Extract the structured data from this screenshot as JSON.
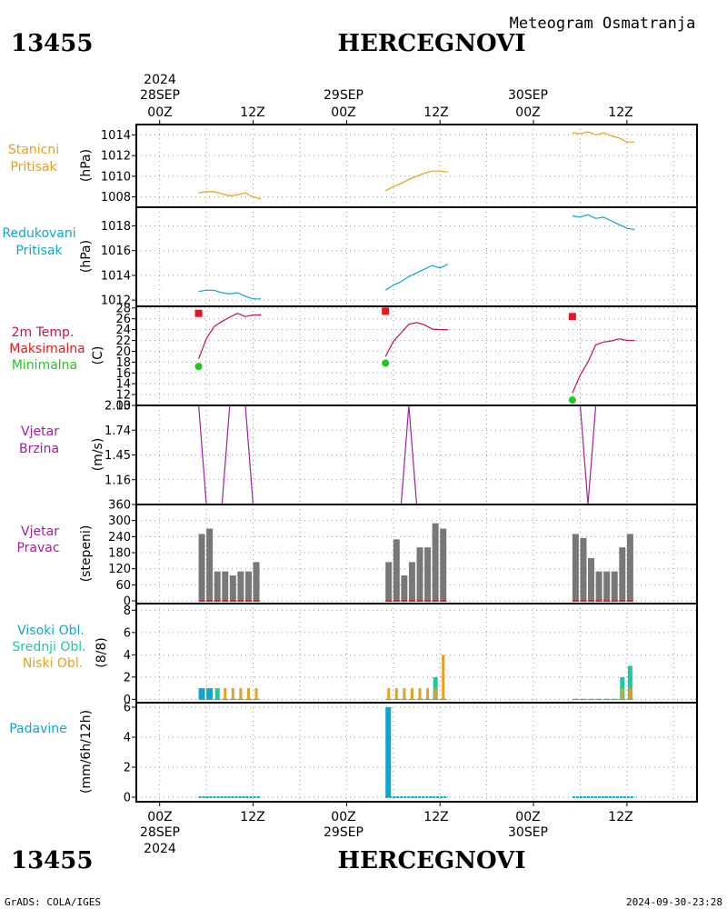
{
  "header": {
    "station_id": "13455",
    "station_name": "HERCEGNOVI",
    "product": "Meteogram Osmatranja"
  },
  "footer": {
    "station_id": "13455",
    "station_name": "HERCEGNOVI",
    "credit": "GrADS: COLA/IGES",
    "timestamp": "2024-09-30-23:28"
  },
  "time_axis": {
    "year": "2024",
    "days": [
      "28SEP",
      "29SEP",
      "30SEP"
    ],
    "hour_labels": [
      "00Z",
      "12Z",
      "00Z",
      "12Z",
      "00Z",
      "12Z"
    ],
    "range_hours": [
      -3,
      69
    ],
    "label_hours": [
      0,
      12,
      24,
      36,
      48,
      60
    ],
    "grid_hours": [
      0,
      6,
      12,
      18,
      24,
      30,
      36,
      42,
      48,
      54,
      60,
      66
    ]
  },
  "colors": {
    "station_pressure": "#e6a01e",
    "reduced_pressure": "#0ea6d0",
    "tmax_line": "#c8104e",
    "tmax_marker": "#e8161e",
    "tmin_marker": "#1ec81e",
    "wind_speed": "#a020a0",
    "wind_dir_bar": "#787878",
    "wind_dir_base": "#c03030",
    "cloud_high": "#0ea6d0",
    "cloud_mid": "#1ec8a0",
    "cloud_low": "#e6a01e",
    "precip": "#0ea6d0",
    "label_pressure": "#e6a01e",
    "label_reduced": "#0ea6d0",
    "label_temp_title": "#c8104e",
    "label_temp_max": "#e8161e",
    "label_temp_min": "#1ec81e",
    "label_wind": "#a020a0",
    "label_cloud_mid": "#1ec8a0",
    "grid": "#999999"
  },
  "chart_data": [
    {
      "type": "line",
      "panel": "station_pressure",
      "labels": [
        "Stanicni",
        "Pritisak"
      ],
      "ylabel": "(hPa)",
      "ylim": [
        1007,
        1015
      ],
      "yticks": [
        1008,
        1010,
        1012,
        1014
      ],
      "series": [
        {
          "x": [
            5,
            6,
            7,
            8,
            9,
            10,
            11,
            12,
            13
          ],
          "y": [
            1008.4,
            1008.5,
            1008.5,
            1008.3,
            1008.1,
            1008.2,
            1008.4,
            1008.0,
            1007.8
          ]
        },
        {
          "x": [
            29,
            30,
            31,
            32,
            33,
            34,
            35,
            36,
            37
          ],
          "y": [
            1008.6,
            1009.0,
            1009.3,
            1009.7,
            1010.0,
            1010.3,
            1010.5,
            1010.5,
            1010.4
          ]
        },
        {
          "x": [
            53,
            54,
            55,
            56,
            57,
            58,
            59,
            60,
            61
          ],
          "y": [
            1014.2,
            1014.1,
            1014.3,
            1014.0,
            1014.2,
            1013.9,
            1013.7,
            1013.3,
            1013.3
          ]
        }
      ]
    },
    {
      "type": "line",
      "panel": "reduced_pressure",
      "labels": [
        "Redukovani",
        "Pritisak"
      ],
      "ylabel": "(hPa)",
      "ylim": [
        1011.5,
        1019.5
      ],
      "yticks": [
        1012,
        1014,
        1016,
        1018
      ],
      "series": [
        {
          "x": [
            5,
            6,
            7,
            8,
            9,
            10,
            11,
            12,
            13
          ],
          "y": [
            1012.7,
            1012.8,
            1012.8,
            1012.6,
            1012.5,
            1012.6,
            1012.3,
            1012.1,
            1012.1
          ]
        },
        {
          "x": [
            29,
            30,
            31,
            32,
            33,
            34,
            35,
            36,
            37
          ],
          "y": [
            1012.8,
            1013.2,
            1013.5,
            1013.9,
            1014.2,
            1014.5,
            1014.8,
            1014.6,
            1014.9
          ]
        },
        {
          "x": [
            53,
            54,
            55,
            56,
            57,
            58,
            59,
            60,
            61
          ],
          "y": [
            1018.8,
            1018.7,
            1018.9,
            1018.6,
            1018.7,
            1018.4,
            1018.1,
            1017.8,
            1017.7
          ]
        }
      ]
    },
    {
      "type": "line",
      "panel": "temperature",
      "labels": [
        "2m Temp.",
        "Maksimalna",
        "Minimalna"
      ],
      "ylabel": "(C)",
      "ylim": [
        10,
        28.3
      ],
      "yticks": [
        10,
        12,
        14,
        16,
        18,
        20,
        22,
        24,
        26,
        28
      ],
      "series": [
        {
          "x": [
            5,
            6,
            7,
            8,
            9,
            10,
            11,
            12,
            13
          ],
          "y": [
            18.6,
            22.3,
            24.6,
            25.5,
            26.3,
            27.0,
            26.4,
            26.7,
            26.7
          ]
        },
        {
          "x": [
            29,
            30,
            31,
            32,
            33,
            34,
            35,
            36,
            37
          ],
          "y": [
            19.0,
            21.8,
            23.4,
            25.0,
            25.3,
            24.9,
            24.1,
            24.0,
            24.0
          ]
        },
        {
          "x": [
            53,
            54,
            55,
            56,
            57,
            58,
            59,
            60,
            61
          ],
          "y": [
            12.3,
            15.6,
            18.0,
            21.2,
            21.7,
            21.9,
            22.3,
            22.0,
            22.0
          ]
        }
      ],
      "tmax": [
        {
          "x": 5,
          "y": 27.0
        },
        {
          "x": 29,
          "y": 27.4
        },
        {
          "x": 53,
          "y": 26.4
        }
      ],
      "tmin": [
        {
          "x": 5,
          "y": 17.2
        },
        {
          "x": 29,
          "y": 17.8
        },
        {
          "x": 53,
          "y": 11.0
        }
      ]
    },
    {
      "type": "line",
      "panel": "wind_speed",
      "labels": [
        "Vjetar",
        "Brzina"
      ],
      "ylabel": "(m/s)",
      "ylim": [
        0.87,
        2.03
      ],
      "yticks": [
        1.16,
        1.45,
        1.74,
        2.03
      ],
      "series": [
        {
          "x": [
            5,
            6,
            7,
            8,
            9,
            10,
            11,
            12,
            13
          ],
          "y": [
            2.03,
            0.87,
            0.87,
            0.87,
            2.03,
            2.03,
            2.03,
            0.87,
            0.87
          ]
        },
        {
          "x": [
            29,
            30,
            31,
            32,
            33,
            34,
            35,
            36,
            37
          ],
          "y": [
            0.87,
            0.87,
            0.87,
            2.03,
            0.87,
            0.87,
            0.87,
            0.87,
            0.87
          ]
        },
        {
          "x": [
            53,
            54,
            55,
            56,
            57,
            58,
            59,
            60,
            61
          ],
          "y": [
            2.03,
            2.03,
            0.87,
            2.03,
            2.03,
            2.03,
            2.03,
            2.03,
            2.03
          ]
        }
      ]
    },
    {
      "type": "bar",
      "panel": "wind_direction",
      "labels": [
        "Vjetar",
        "Pravac"
      ],
      "ylabel": "(stepeni)",
      "ylim": [
        -10,
        360
      ],
      "yticks": [
        0,
        60,
        120,
        180,
        240,
        300,
        360
      ],
      "x": [
        5,
        6,
        7,
        8,
        9,
        10,
        11,
        12,
        29,
        30,
        31,
        32,
        33,
        34,
        35,
        36,
        53,
        54,
        55,
        56,
        57,
        58,
        59,
        60
      ],
      "values": [
        250,
        270,
        110,
        110,
        95,
        110,
        110,
        145,
        145,
        230,
        95,
        145,
        200,
        200,
        290,
        270,
        250,
        235,
        160,
        110,
        110,
        110,
        200,
        250
      ]
    },
    {
      "type": "bar",
      "panel": "cloud_cover",
      "labels": [
        "Visoki Obl.",
        "Srednji Obl.",
        "Niski Obl."
      ],
      "ylabel": "(8/8)",
      "ylim": [
        -0.3,
        8.6
      ],
      "yticks": [
        0,
        2,
        4,
        6,
        8
      ],
      "x": [
        5,
        6,
        7,
        8,
        9,
        10,
        11,
        12,
        29,
        30,
        31,
        32,
        33,
        34,
        35,
        36,
        53,
        54,
        55,
        56,
        57,
        58,
        59,
        60
      ],
      "series": [
        {
          "name": "Visoki Obl.",
          "values": [
            1,
            1,
            0,
            0,
            0,
            0,
            0,
            0,
            0,
            0,
            0,
            0,
            0,
            0,
            0,
            0,
            0,
            0,
            0,
            0,
            0,
            0,
            0,
            0
          ]
        },
        {
          "name": "Srednji Obl.",
          "values": [
            0,
            0,
            1,
            0,
            0,
            0,
            0,
            0,
            0,
            0,
            0,
            0,
            0,
            0,
            2,
            0,
            0,
            0,
            0,
            0,
            0,
            0,
            2,
            3
          ]
        },
        {
          "name": "Niski Obl.",
          "values": [
            0,
            0,
            0,
            1,
            1,
            1,
            1,
            1,
            1,
            1,
            1,
            1,
            1,
            1,
            1,
            4,
            0,
            0,
            0,
            0,
            0,
            0,
            1,
            1
          ]
        }
      ]
    },
    {
      "type": "bar",
      "panel": "precipitation",
      "labels": [
        "Padavine"
      ],
      "ylabel": "(mm/6h/12h)",
      "ylim": [
        -0.3,
        6.3
      ],
      "yticks": [
        0,
        2,
        4,
        6
      ],
      "x": [
        29
      ],
      "values": [
        6
      ],
      "trace_hours": [
        [
          5,
          13
        ],
        [
          29,
          37
        ],
        [
          53,
          61
        ]
      ]
    }
  ]
}
